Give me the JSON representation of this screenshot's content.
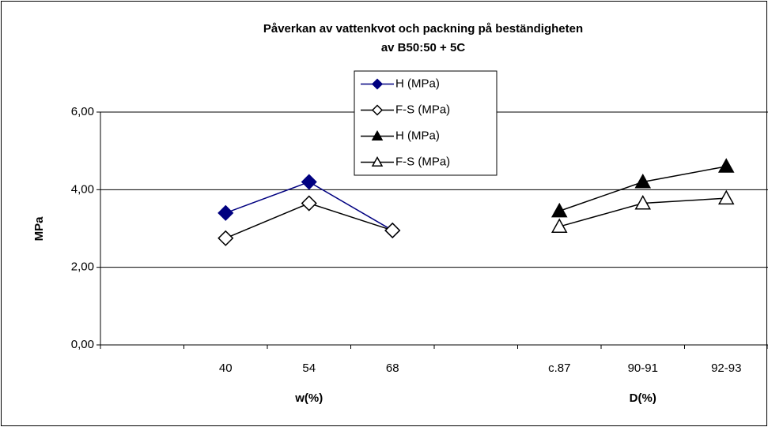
{
  "chart_data": {
    "type": "line",
    "title": [
      "Påverkan av vattenkvot och packning på beständigheten",
      "av B50:50 + 5C"
    ],
    "ylabel": "MPa",
    "xlabels": [
      "w(%)",
      "D(%)"
    ],
    "categories": [
      null,
      "40",
      "54",
      "68",
      null,
      "c.87",
      "90-91",
      "92-93"
    ],
    "series": [
      {
        "name": "H (MPa)",
        "color": "#000080",
        "marker": "diamond",
        "filled": true,
        "values": [
          null,
          3.4,
          4.2,
          2.95,
          null,
          null,
          null,
          null
        ]
      },
      {
        "name": "F-S (MPa)",
        "color": "#000000",
        "marker": "diamond",
        "filled": false,
        "values": [
          null,
          2.75,
          3.65,
          2.95,
          null,
          null,
          null,
          null
        ]
      },
      {
        "name": "H (MPa)",
        "color": "#000000",
        "marker": "triangle",
        "filled": true,
        "values": [
          null,
          null,
          null,
          null,
          null,
          3.45,
          4.2,
          4.6
        ]
      },
      {
        "name": "F-S (MPa)",
        "color": "#000000",
        "marker": "triangle",
        "filled": false,
        "values": [
          null,
          null,
          null,
          null,
          null,
          3.05,
          3.65,
          3.78
        ]
      }
    ],
    "ylim": [
      0,
      6
    ],
    "yticks": [
      {
        "value": 0,
        "label": "0,00"
      },
      {
        "value": 2,
        "label": "2,00"
      },
      {
        "value": 4,
        "label": "4,00"
      },
      {
        "value": 6,
        "label": "6,00"
      }
    ],
    "grid": true,
    "legend": "top"
  }
}
